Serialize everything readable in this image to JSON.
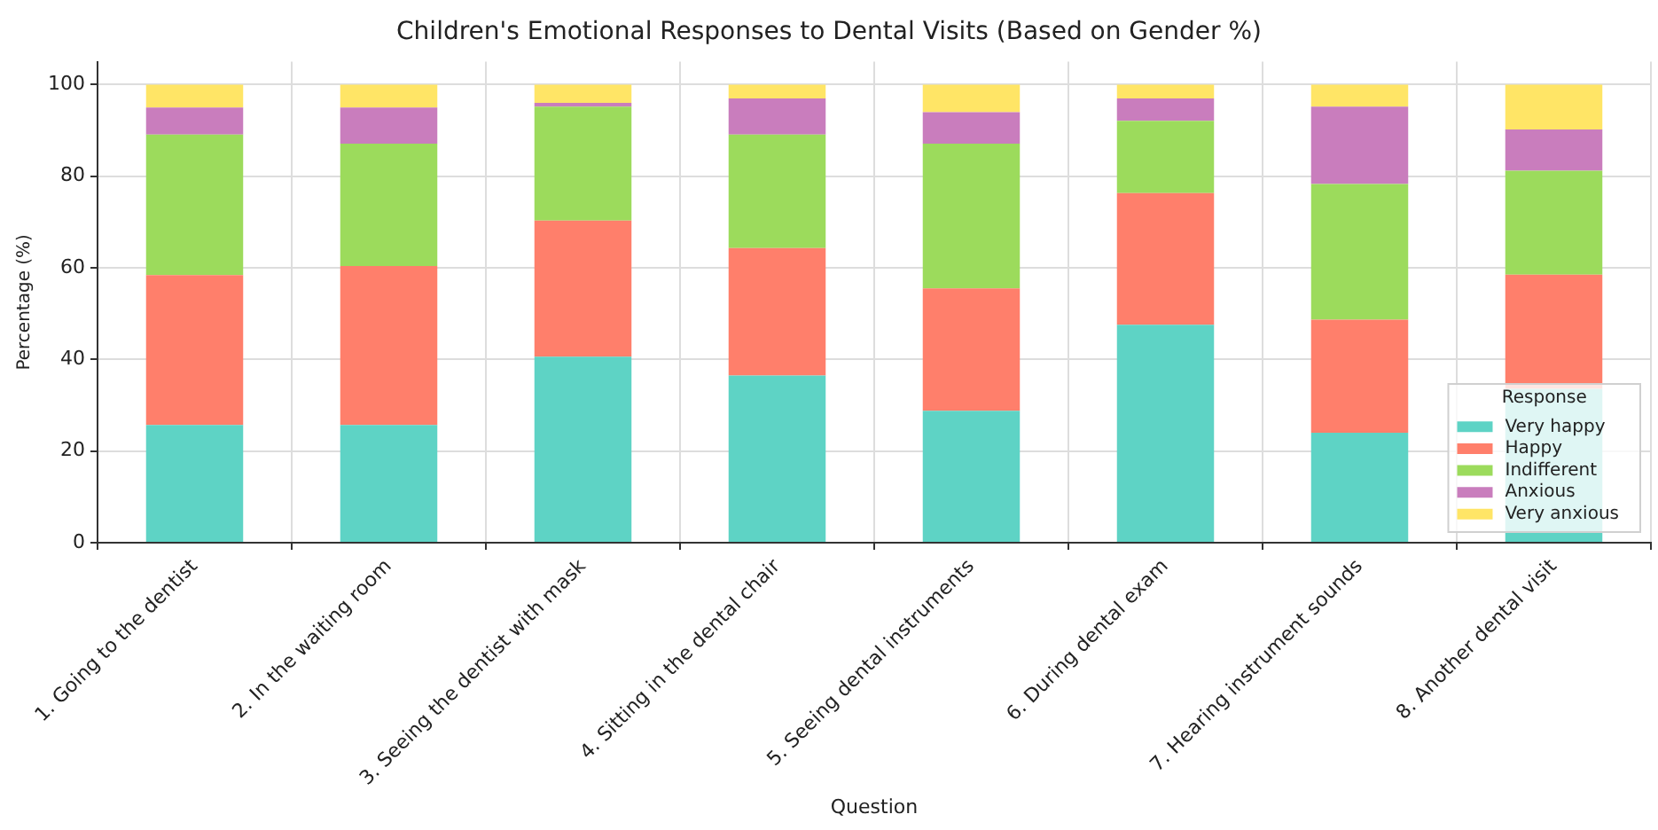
{
  "chart_data": {
    "type": "bar",
    "title": "Children's Emotional Responses to Dental Visits (Based on Gender %)",
    "xlabel": "Question",
    "ylabel": "Percentage (%)",
    "legend_title": "Response",
    "categories": [
      "1. Going to the dentist",
      "2. In the waiting room",
      "3. Seeing the dentist with mask",
      "4. Sitting in the dental chair",
      "5. Seeing dental instruments",
      "6. During dental exam",
      "7. Hearing instrument sounds",
      "8. Another dental visit"
    ],
    "series": [
      {
        "name": "Very happy",
        "color": "#5ed3c5",
        "values": [
          25.7,
          25.7,
          40.6,
          36.5,
          28.8,
          47.6,
          24.0,
          33.6
        ]
      },
      {
        "name": "Happy",
        "color": "#ff7f6b",
        "values": [
          32.7,
          34.7,
          29.7,
          27.8,
          26.7,
          28.7,
          24.7,
          24.9
        ]
      },
      {
        "name": "Indifferent",
        "color": "#9cdb5c",
        "values": [
          30.7,
          26.7,
          24.9,
          24.8,
          31.6,
          15.8,
          29.6,
          22.7
        ]
      },
      {
        "name": "Anxious",
        "color": "#c97dbd",
        "values": [
          5.9,
          7.9,
          0.8,
          7.9,
          6.9,
          4.9,
          16.9,
          9.0
        ]
      },
      {
        "name": "Very anxious",
        "color": "#ffe566",
        "values": [
          5.0,
          5.0,
          4.0,
          3.0,
          6.0,
          3.0,
          4.8,
          9.8
        ]
      }
    ],
    "stacked": true,
    "ylim": [
      0,
      105
    ],
    "yticks": [
      0,
      20,
      40,
      60,
      80,
      100
    ],
    "grid": true,
    "legend": "bottom right"
  }
}
